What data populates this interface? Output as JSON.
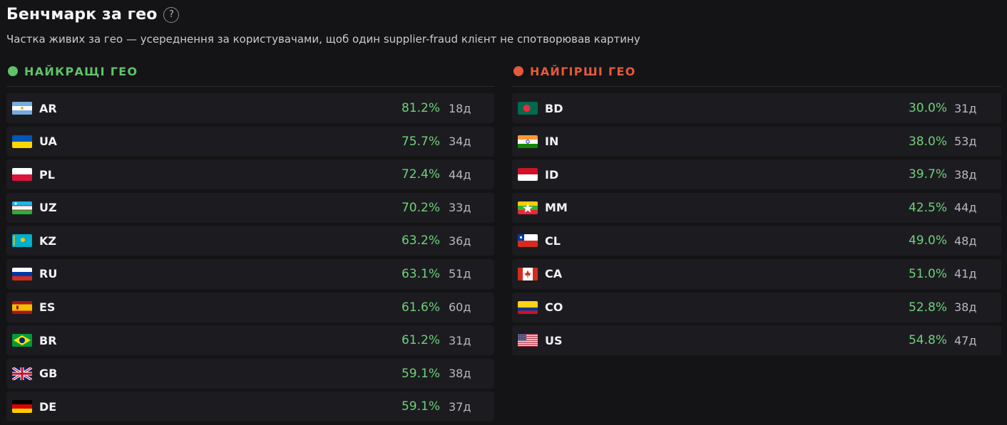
{
  "header": {
    "title": "Бенчмарк за гео",
    "help_glyph": "?",
    "subtitle": "Частка живих за гео — усереднення за користувачами, щоб один supplier-fraud клієнт не спотворював картину"
  },
  "best": {
    "title": "НАЙКРАЩІ ГЕО",
    "accent": "#5fc36a",
    "rows": [
      {
        "flag": "ar-flag-icon",
        "code": "AR",
        "pct": "81.2%",
        "days": "18д"
      },
      {
        "flag": "ua-flag-icon",
        "code": "UA",
        "pct": "75.7%",
        "days": "34д"
      },
      {
        "flag": "pl-flag-icon",
        "code": "PL",
        "pct": "72.4%",
        "days": "44д"
      },
      {
        "flag": "uz-flag-icon",
        "code": "UZ",
        "pct": "70.2%",
        "days": "33д"
      },
      {
        "flag": "kz-flag-icon",
        "code": "KZ",
        "pct": "63.2%",
        "days": "36д"
      },
      {
        "flag": "ru-flag-icon",
        "code": "RU",
        "pct": "63.1%",
        "days": "51д"
      },
      {
        "flag": "es-flag-icon",
        "code": "ES",
        "pct": "61.6%",
        "days": "60д"
      },
      {
        "flag": "br-flag-icon",
        "code": "BR",
        "pct": "61.2%",
        "days": "31д"
      },
      {
        "flag": "gb-flag-icon",
        "code": "GB",
        "pct": "59.1%",
        "days": "38д"
      },
      {
        "flag": "de-flag-icon",
        "code": "DE",
        "pct": "59.1%",
        "days": "37д"
      }
    ]
  },
  "worst": {
    "title": "НАЙГІРШІ ГЕО",
    "accent": "#e45a3c",
    "rows": [
      {
        "flag": "bd-flag-icon",
        "code": "BD",
        "pct": "30.0%",
        "days": "31д"
      },
      {
        "flag": "in-flag-icon",
        "code": "IN",
        "pct": "38.0%",
        "days": "53д"
      },
      {
        "flag": "id-flag-icon",
        "code": "ID",
        "pct": "39.7%",
        "days": "38д"
      },
      {
        "flag": "mm-flag-icon",
        "code": "MM",
        "pct": "42.5%",
        "days": "44д"
      },
      {
        "flag": "cl-flag-icon",
        "code": "CL",
        "pct": "49.0%",
        "days": "48д"
      },
      {
        "flag": "ca-flag-icon",
        "code": "CA",
        "pct": "51.0%",
        "days": "41д"
      },
      {
        "flag": "co-flag-icon",
        "code": "CO",
        "pct": "52.8%",
        "days": "38д"
      },
      {
        "flag": "us-flag-icon",
        "code": "US",
        "pct": "54.8%",
        "days": "47д"
      }
    ]
  }
}
